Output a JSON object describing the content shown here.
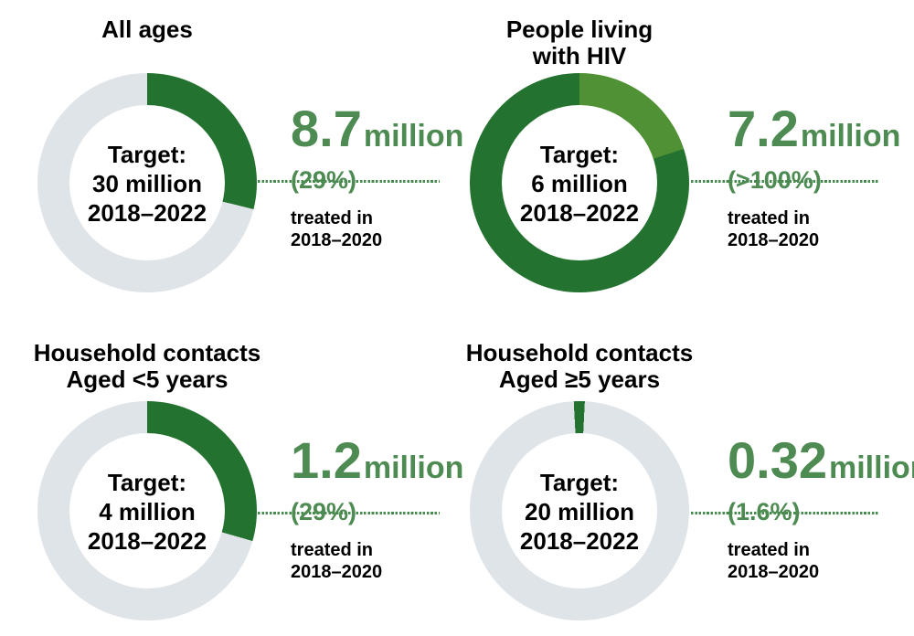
{
  "colors": {
    "donut_green": "#24722f",
    "donut_light_green": "#4f9134",
    "donut_track_gray": "#dfe4e9",
    "accent_green": "#4d8b52",
    "dot_green": "#458b4e",
    "text_black": "#000000"
  },
  "chart_data": [
    {
      "type": "donut",
      "title_lines": [
        "All ages"
      ],
      "center_lines": [
        "Target:",
        "30 million",
        "2018–2022"
      ],
      "target_million": 30,
      "treated_million": 8.7,
      "percent_of_target": "29%",
      "value": "8.7",
      "unit": "million",
      "percent": "(29%)",
      "caption_lines": [
        "treated in",
        "2018–2020"
      ],
      "donut": {
        "rotate_deg": 0,
        "segments": [
          {
            "color_key": "donut_green",
            "from_deg": 0,
            "to_deg": 104
          },
          {
            "color_key": "donut_track_gray",
            "from_deg": 104,
            "to_deg": 360
          }
        ]
      }
    },
    {
      "type": "donut",
      "title_lines": [
        "People living",
        "with HIV"
      ],
      "center_lines": [
        "Target:",
        "6 million",
        "2018–2022"
      ],
      "target_million": 6,
      "treated_million": 7.2,
      "percent_of_target": ">100%",
      "value": "7.2",
      "unit": "million",
      "percent": "(>100%)",
      "caption_lines": [
        "treated in",
        "2018–2020"
      ],
      "donut": {
        "rotate_deg": 0,
        "segments": [
          {
            "color_key": "donut_light_green",
            "from_deg": 0,
            "to_deg": 72
          },
          {
            "color_key": "donut_green",
            "from_deg": 72,
            "to_deg": 360
          }
        ]
      }
    },
    {
      "type": "donut",
      "title_lines": [
        "Household contacts",
        "Aged <5 years"
      ],
      "center_lines": [
        "Target:",
        "4 million",
        "2018–2022"
      ],
      "target_million": 4,
      "treated_million": 1.2,
      "percent_of_target": "29%",
      "value": "1.2",
      "unit": "million",
      "percent": "(29%)",
      "caption_lines": [
        "treated in",
        "2018–2020"
      ],
      "donut": {
        "rotate_deg": 0,
        "segments": [
          {
            "color_key": "donut_green",
            "from_deg": 0,
            "to_deg": 106
          },
          {
            "color_key": "donut_track_gray",
            "from_deg": 106,
            "to_deg": 360
          }
        ]
      }
    },
    {
      "type": "donut",
      "title_lines": [
        "Household contacts",
        "Aged ≥5 years"
      ],
      "center_lines": [
        "Target:",
        "20 million",
        "2018–2022"
      ],
      "target_million": 20,
      "treated_million": 0.32,
      "percent_of_target": "1.6%",
      "value": "0.32",
      "unit": "million",
      "percent": "(1.6%)",
      "caption_lines": [
        "treated in",
        "2018–2020"
      ],
      "donut": {
        "rotate_deg": -3,
        "segments": [
          {
            "color_key": "donut_green",
            "from_deg": 0,
            "to_deg": 5.8
          },
          {
            "color_key": "donut_track_gray",
            "from_deg": 5.8,
            "to_deg": 360
          }
        ]
      }
    }
  ]
}
